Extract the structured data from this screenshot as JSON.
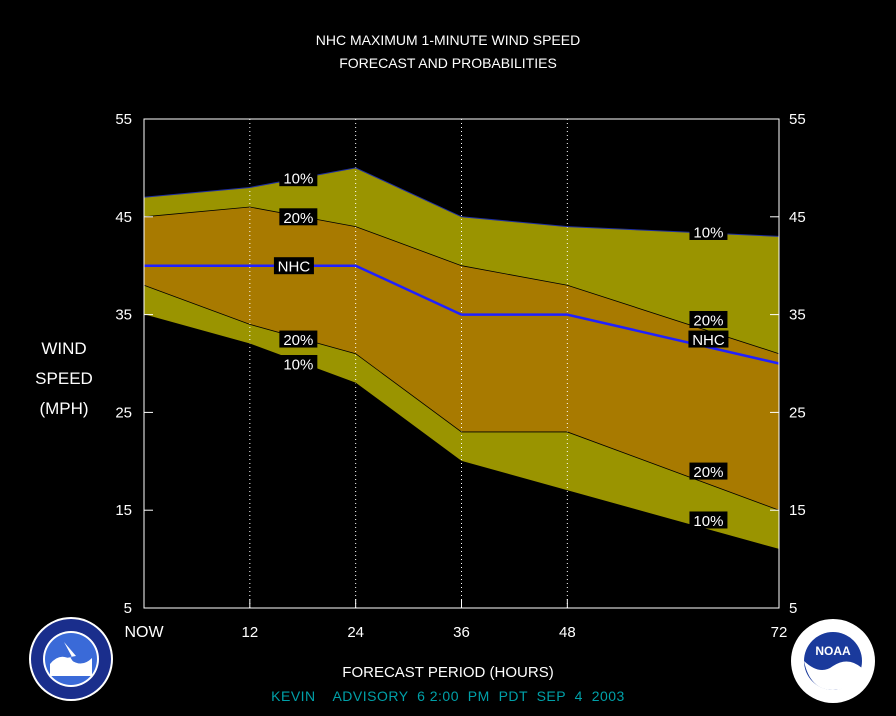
{
  "title_line1": "NHC MAXIMUM 1-MINUTE WIND SPEED",
  "title_line2": "FORECAST AND PROBABILITIES",
  "ylabel_lines": [
    "WIND",
    "SPEED",
    "(MPH)"
  ],
  "xlabel": "FORECAST PERIOD (HOURS)",
  "footer": "KEVIN    ADVISORY  6 2:00  PM  PDT  SEP  4  2003",
  "logos": {
    "left": "nws-logo",
    "right": "noaa-logo",
    "right_text": "NOAA"
  },
  "colors": {
    "outer_band": "#9a9400",
    "inner_band": "#a87a00",
    "nhc_line": "#2020ff",
    "footer": "#00a0a8"
  },
  "chart_data": {
    "type": "area",
    "x": [
      0,
      12,
      24,
      36,
      48,
      72
    ],
    "xtick_labels": [
      "NOW",
      "12",
      "24",
      "36",
      "48",
      "72"
    ],
    "xlim": [
      0,
      72
    ],
    "ylim": [
      5,
      55
    ],
    "yticks": [
      5,
      15,
      25,
      35,
      45,
      55
    ],
    "grid": "vertical dotted",
    "series": [
      {
        "name": "10%",
        "role": "upper",
        "values": [
          47,
          48,
          50,
          45,
          44,
          43
        ]
      },
      {
        "name": "20%",
        "role": "upper",
        "values": [
          45,
          46,
          44,
          40,
          38,
          31
        ]
      },
      {
        "name": "NHC",
        "role": "forecast",
        "values": [
          40,
          40,
          40,
          35,
          35,
          30
        ]
      },
      {
        "name": "20%",
        "role": "lower",
        "values": [
          38,
          34,
          31,
          23,
          23,
          15
        ]
      },
      {
        "name": "10%",
        "role": "lower",
        "values": [
          35,
          32,
          28,
          20,
          17,
          11
        ]
      }
    ],
    "annotations": [
      {
        "text": "10%",
        "x": 17.5,
        "y": 49
      },
      {
        "text": "20%",
        "x": 17.5,
        "y": 45
      },
      {
        "text": "NHC",
        "x": 17,
        "y": 40
      },
      {
        "text": "20%",
        "x": 17.5,
        "y": 32.5
      },
      {
        "text": "10%",
        "x": 17.5,
        "y": 30
      },
      {
        "text": "10%",
        "x": 64,
        "y": 43.5
      },
      {
        "text": "20%",
        "x": 64,
        "y": 34.5
      },
      {
        "text": "NHC",
        "x": 64,
        "y": 32.5
      },
      {
        "text": "20%",
        "x": 64,
        "y": 19
      },
      {
        "text": "10%",
        "x": 64,
        "y": 14
      }
    ]
  }
}
